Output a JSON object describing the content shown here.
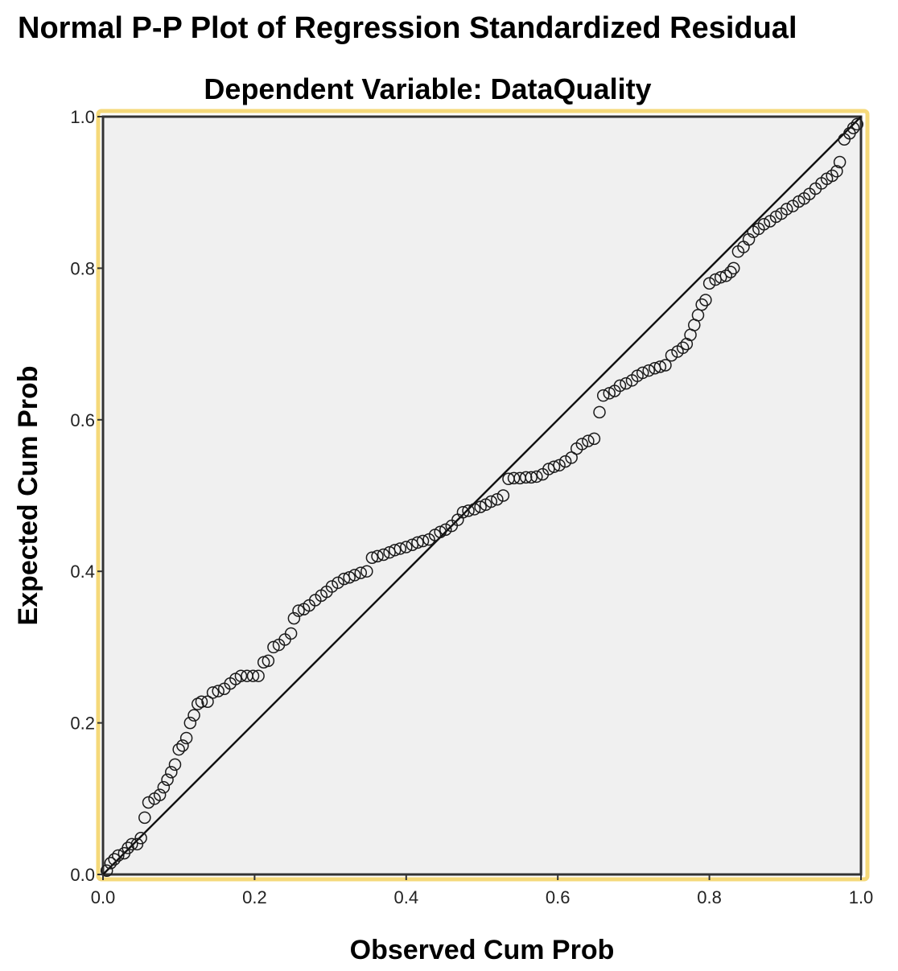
{
  "colors": {
    "plot_background": "#f0f0f0",
    "selection_border": "#f5d97a",
    "frame": "#333333",
    "marker_stroke": "#1a1a1a",
    "reference_line": "#111111"
  },
  "chart_data": {
    "type": "scatter",
    "title": "Normal P-P Plot of Regression Standardized Residual",
    "subtitle": "Dependent Variable: DataQuality",
    "xlabel": "Observed Cum Prob",
    "ylabel": "Expected Cum Prob",
    "xlim": [
      0,
      1
    ],
    "ylim": [
      0,
      1
    ],
    "xticks": [
      "0.0",
      "0.2",
      "0.4",
      "0.6",
      "0.8",
      "1.0"
    ],
    "yticks": [
      "0.0",
      "0.2",
      "0.4",
      "0.6",
      "0.8",
      "1.0"
    ],
    "grid": false,
    "marker": "open-circle",
    "reference_line": {
      "from": [
        0,
        0
      ],
      "to": [
        1,
        1
      ]
    },
    "points": [
      [
        0.005,
        0.005
      ],
      [
        0.01,
        0.015
      ],
      [
        0.015,
        0.02
      ],
      [
        0.02,
        0.025
      ],
      [
        0.028,
        0.028
      ],
      [
        0.033,
        0.035
      ],
      [
        0.038,
        0.04
      ],
      [
        0.045,
        0.04
      ],
      [
        0.05,
        0.048
      ],
      [
        0.055,
        0.075
      ],
      [
        0.06,
        0.095
      ],
      [
        0.068,
        0.1
      ],
      [
        0.075,
        0.105
      ],
      [
        0.08,
        0.115
      ],
      [
        0.085,
        0.125
      ],
      [
        0.09,
        0.135
      ],
      [
        0.095,
        0.145
      ],
      [
        0.1,
        0.165
      ],
      [
        0.105,
        0.17
      ],
      [
        0.11,
        0.18
      ],
      [
        0.115,
        0.2
      ],
      [
        0.12,
        0.21
      ],
      [
        0.125,
        0.225
      ],
      [
        0.13,
        0.228
      ],
      [
        0.138,
        0.228
      ],
      [
        0.145,
        0.24
      ],
      [
        0.152,
        0.242
      ],
      [
        0.16,
        0.245
      ],
      [
        0.168,
        0.252
      ],
      [
        0.175,
        0.258
      ],
      [
        0.182,
        0.262
      ],
      [
        0.19,
        0.262
      ],
      [
        0.198,
        0.262
      ],
      [
        0.205,
        0.262
      ],
      [
        0.212,
        0.28
      ],
      [
        0.218,
        0.282
      ],
      [
        0.225,
        0.3
      ],
      [
        0.232,
        0.303
      ],
      [
        0.24,
        0.31
      ],
      [
        0.248,
        0.318
      ],
      [
        0.252,
        0.338
      ],
      [
        0.258,
        0.348
      ],
      [
        0.265,
        0.35
      ],
      [
        0.272,
        0.355
      ],
      [
        0.28,
        0.362
      ],
      [
        0.288,
        0.368
      ],
      [
        0.295,
        0.373
      ],
      [
        0.302,
        0.38
      ],
      [
        0.31,
        0.385
      ],
      [
        0.318,
        0.39
      ],
      [
        0.325,
        0.392
      ],
      [
        0.332,
        0.395
      ],
      [
        0.34,
        0.398
      ],
      [
        0.348,
        0.4
      ],
      [
        0.355,
        0.418
      ],
      [
        0.362,
        0.42
      ],
      [
        0.37,
        0.422
      ],
      [
        0.378,
        0.425
      ],
      [
        0.385,
        0.428
      ],
      [
        0.392,
        0.43
      ],
      [
        0.4,
        0.432
      ],
      [
        0.408,
        0.435
      ],
      [
        0.415,
        0.438
      ],
      [
        0.422,
        0.44
      ],
      [
        0.43,
        0.442
      ],
      [
        0.438,
        0.448
      ],
      [
        0.445,
        0.452
      ],
      [
        0.452,
        0.455
      ],
      [
        0.46,
        0.46
      ],
      [
        0.468,
        0.468
      ],
      [
        0.475,
        0.478
      ],
      [
        0.482,
        0.48
      ],
      [
        0.49,
        0.482
      ],
      [
        0.498,
        0.485
      ],
      [
        0.505,
        0.488
      ],
      [
        0.512,
        0.492
      ],
      [
        0.52,
        0.495
      ],
      [
        0.528,
        0.5
      ],
      [
        0.535,
        0.522
      ],
      [
        0.542,
        0.523
      ],
      [
        0.55,
        0.523
      ],
      [
        0.558,
        0.524
      ],
      [
        0.565,
        0.524
      ],
      [
        0.572,
        0.525
      ],
      [
        0.58,
        0.528
      ],
      [
        0.588,
        0.535
      ],
      [
        0.595,
        0.538
      ],
      [
        0.602,
        0.54
      ],
      [
        0.61,
        0.545
      ],
      [
        0.618,
        0.55
      ],
      [
        0.625,
        0.562
      ],
      [
        0.632,
        0.568
      ],
      [
        0.64,
        0.572
      ],
      [
        0.648,
        0.575
      ],
      [
        0.655,
        0.61
      ],
      [
        0.66,
        0.632
      ],
      [
        0.668,
        0.635
      ],
      [
        0.675,
        0.638
      ],
      [
        0.682,
        0.645
      ],
      [
        0.69,
        0.648
      ],
      [
        0.698,
        0.652
      ],
      [
        0.705,
        0.658
      ],
      [
        0.712,
        0.662
      ],
      [
        0.72,
        0.665
      ],
      [
        0.728,
        0.668
      ],
      [
        0.735,
        0.67
      ],
      [
        0.742,
        0.672
      ],
      [
        0.75,
        0.685
      ],
      [
        0.758,
        0.69
      ],
      [
        0.765,
        0.695
      ],
      [
        0.77,
        0.7
      ],
      [
        0.775,
        0.712
      ],
      [
        0.78,
        0.725
      ],
      [
        0.785,
        0.738
      ],
      [
        0.79,
        0.752
      ],
      [
        0.795,
        0.758
      ],
      [
        0.8,
        0.78
      ],
      [
        0.808,
        0.785
      ],
      [
        0.815,
        0.788
      ],
      [
        0.822,
        0.79
      ],
      [
        0.828,
        0.795
      ],
      [
        0.832,
        0.8
      ],
      [
        0.838,
        0.822
      ],
      [
        0.845,
        0.828
      ],
      [
        0.852,
        0.838
      ],
      [
        0.858,
        0.848
      ],
      [
        0.865,
        0.852
      ],
      [
        0.872,
        0.858
      ],
      [
        0.88,
        0.862
      ],
      [
        0.888,
        0.868
      ],
      [
        0.895,
        0.872
      ],
      [
        0.902,
        0.878
      ],
      [
        0.91,
        0.882
      ],
      [
        0.918,
        0.888
      ],
      [
        0.925,
        0.892
      ],
      [
        0.932,
        0.898
      ],
      [
        0.94,
        0.905
      ],
      [
        0.948,
        0.912
      ],
      [
        0.955,
        0.918
      ],
      [
        0.962,
        0.922
      ],
      [
        0.968,
        0.928
      ],
      [
        0.972,
        0.94
      ],
      [
        0.978,
        0.97
      ],
      [
        0.985,
        0.978
      ],
      [
        0.99,
        0.985
      ],
      [
        0.995,
        0.99
      ]
    ]
  }
}
